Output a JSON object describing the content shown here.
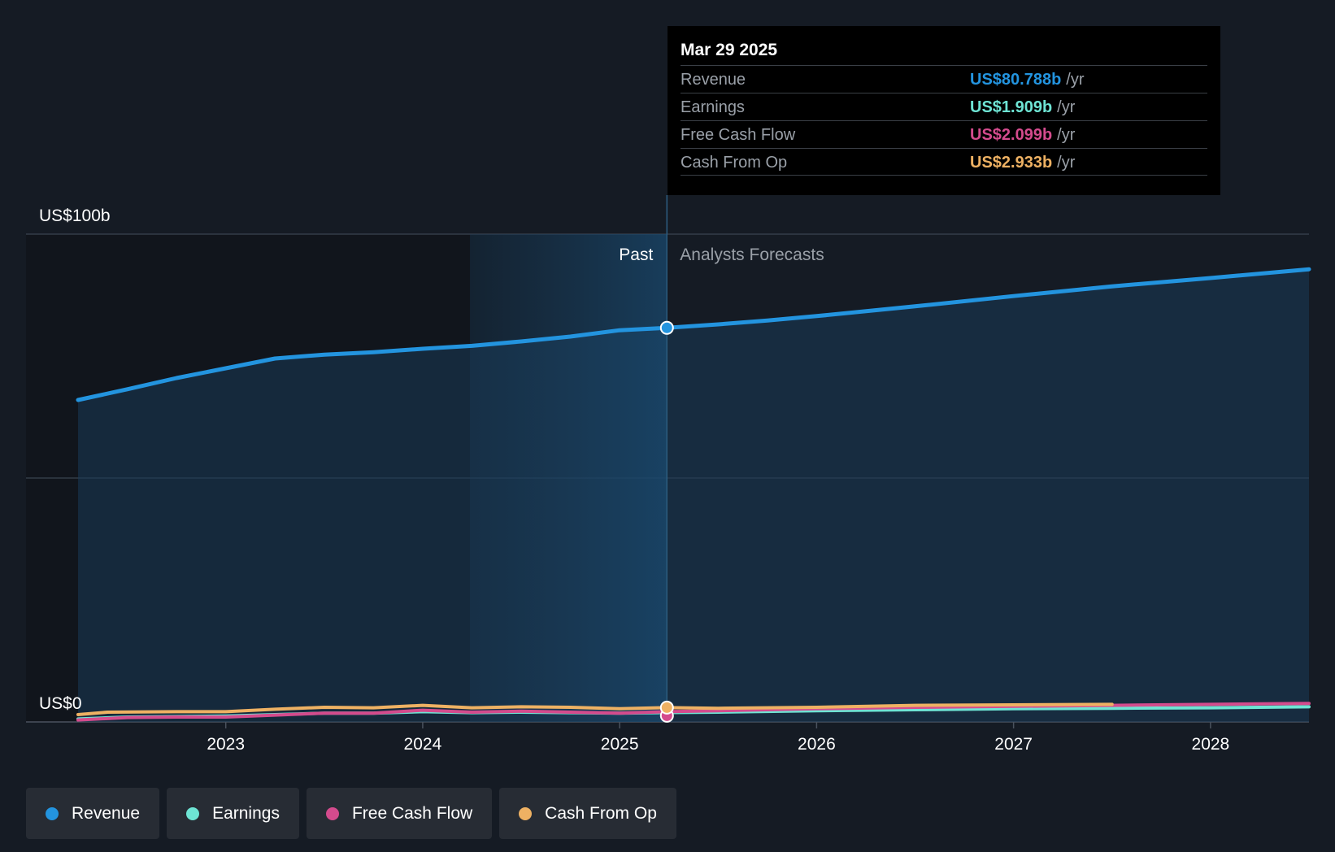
{
  "chart_data": {
    "type": "line",
    "y_top_label": "US$100b",
    "y_bottom_label": "US$0",
    "ylim": [
      0,
      100
    ],
    "xlim": [
      2022.25,
      2028.5
    ],
    "x_ticks": [
      "2023",
      "2024",
      "2025",
      "2026",
      "2027",
      "2028"
    ],
    "x_tick_values": [
      2023,
      2024,
      2025,
      2026,
      2027,
      2028
    ],
    "past_label": "Past",
    "forecast_label": "Analysts Forecasts",
    "divider_x": 2025.24,
    "highlight_start_x": 2024.24,
    "series": [
      {
        "name": "Revenue",
        "color": "#2394df",
        "values": [
          [
            2022.25,
            66.0
          ],
          [
            2022.5,
            68.2
          ],
          [
            2022.75,
            70.5
          ],
          [
            2023.0,
            72.5
          ],
          [
            2023.25,
            74.5
          ],
          [
            2023.5,
            75.3
          ],
          [
            2023.75,
            75.8
          ],
          [
            2024.0,
            76.5
          ],
          [
            2024.25,
            77.1
          ],
          [
            2024.5,
            78.0
          ],
          [
            2024.75,
            79.0
          ],
          [
            2025.0,
            80.3
          ],
          [
            2025.24,
            80.788
          ],
          [
            2025.5,
            81.5
          ],
          [
            2025.75,
            82.3
          ],
          [
            2026.0,
            83.2
          ],
          [
            2026.5,
            85.2
          ],
          [
            2027.0,
            87.3
          ],
          [
            2027.5,
            89.3
          ],
          [
            2028.0,
            91.0
          ],
          [
            2028.5,
            92.8
          ]
        ]
      },
      {
        "name": "Earnings",
        "color": "#6ee4d4",
        "values": [
          [
            2022.25,
            0.6
          ],
          [
            2022.5,
            1.0
          ],
          [
            2022.75,
            1.1
          ],
          [
            2023.0,
            1.2
          ],
          [
            2023.25,
            1.5
          ],
          [
            2023.5,
            1.8
          ],
          [
            2023.75,
            1.8
          ],
          [
            2024.0,
            2.1
          ],
          [
            2024.25,
            1.9
          ],
          [
            2024.5,
            2.0
          ],
          [
            2024.75,
            1.9
          ],
          [
            2025.0,
            1.8
          ],
          [
            2025.24,
            1.909
          ],
          [
            2025.5,
            2.0
          ],
          [
            2026.0,
            2.3
          ],
          [
            2026.5,
            2.5
          ],
          [
            2027.0,
            2.7
          ],
          [
            2027.5,
            2.8
          ],
          [
            2028.0,
            2.9
          ],
          [
            2028.5,
            3.1
          ]
        ]
      },
      {
        "name": "Free Cash Flow",
        "color": "#d44b8d",
        "values": [
          [
            2022.25,
            0.4
          ],
          [
            2022.5,
            0.9
          ],
          [
            2022.75,
            1.0
          ],
          [
            2023.0,
            1.0
          ],
          [
            2023.25,
            1.4
          ],
          [
            2023.5,
            1.8
          ],
          [
            2023.75,
            1.8
          ],
          [
            2024.0,
            2.4
          ],
          [
            2024.25,
            2.0
          ],
          [
            2024.5,
            2.2
          ],
          [
            2024.75,
            2.0
          ],
          [
            2025.0,
            1.8
          ],
          [
            2025.24,
            2.099
          ],
          [
            2025.5,
            2.3
          ],
          [
            2026.0,
            2.7
          ],
          [
            2026.5,
            3.0
          ],
          [
            2027.0,
            3.2
          ],
          [
            2027.5,
            3.4
          ],
          [
            2028.0,
            3.6
          ],
          [
            2028.5,
            3.8
          ]
        ]
      },
      {
        "name": "Cash From Op",
        "color": "#eeb163",
        "values": [
          [
            2022.25,
            1.5
          ],
          [
            2022.4,
            2.0
          ],
          [
            2022.75,
            2.1
          ],
          [
            2023.0,
            2.1
          ],
          [
            2023.25,
            2.6
          ],
          [
            2023.5,
            3.0
          ],
          [
            2023.75,
            2.9
          ],
          [
            2024.0,
            3.4
          ],
          [
            2024.25,
            2.9
          ],
          [
            2024.5,
            3.1
          ],
          [
            2024.75,
            3.0
          ],
          [
            2025.0,
            2.7
          ],
          [
            2025.24,
            2.933
          ],
          [
            2025.5,
            2.8
          ],
          [
            2026.0,
            3.0
          ],
          [
            2026.5,
            3.4
          ],
          [
            2027.0,
            3.5
          ],
          [
            2027.5,
            3.6
          ]
        ]
      }
    ]
  },
  "tooltip": {
    "date": "Mar 29 2025",
    "rows": [
      {
        "label": "Revenue",
        "value": "US$80.788b",
        "unit": "/yr",
        "color": "#2394df"
      },
      {
        "label": "Earnings",
        "value": "US$1.909b",
        "unit": "/yr",
        "color": "#6ee4d4"
      },
      {
        "label": "Free Cash Flow",
        "value": "US$2.099b",
        "unit": "/yr",
        "color": "#d44b8d"
      },
      {
        "label": "Cash From Op",
        "value": "US$2.933b",
        "unit": "/yr",
        "color": "#eeb163"
      }
    ]
  },
  "legend": [
    {
      "label": "Revenue",
      "color": "#2394df"
    },
    {
      "label": "Earnings",
      "color": "#6ee4d4"
    },
    {
      "label": "Free Cash Flow",
      "color": "#d44b8d"
    },
    {
      "label": "Cash From Op",
      "color": "#eeb163"
    }
  ]
}
